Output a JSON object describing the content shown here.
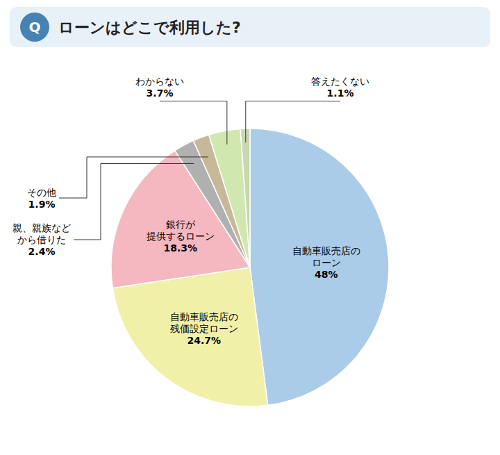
{
  "chart_data": {
    "type": "pie",
    "title_badge": "Q",
    "title": "ローンはどこで利用した?",
    "categories": [
      "自動車販売店の\nローン",
      "自動車販売店の\n残価設定ローン",
      "銀行が\n提供するローン",
      "親、親族など\nから借りた",
      "その他",
      "わからない",
      "答えたくない"
    ],
    "values": [
      48.0,
      24.7,
      18.3,
      2.4,
      1.9,
      3.7,
      1.1
    ],
    "value_labels": [
      "48%",
      "24.7%",
      "18.3%",
      "2.4%",
      "1.9%",
      "3.7%",
      "1.1%"
    ],
    "colors": [
      "#aacce8",
      "#f0f0a8",
      "#f5b8c0",
      "#b0b0b0",
      "#c8b89a",
      "#d0e8b0",
      "#c8d8b0"
    ],
    "data_labels": true
  }
}
